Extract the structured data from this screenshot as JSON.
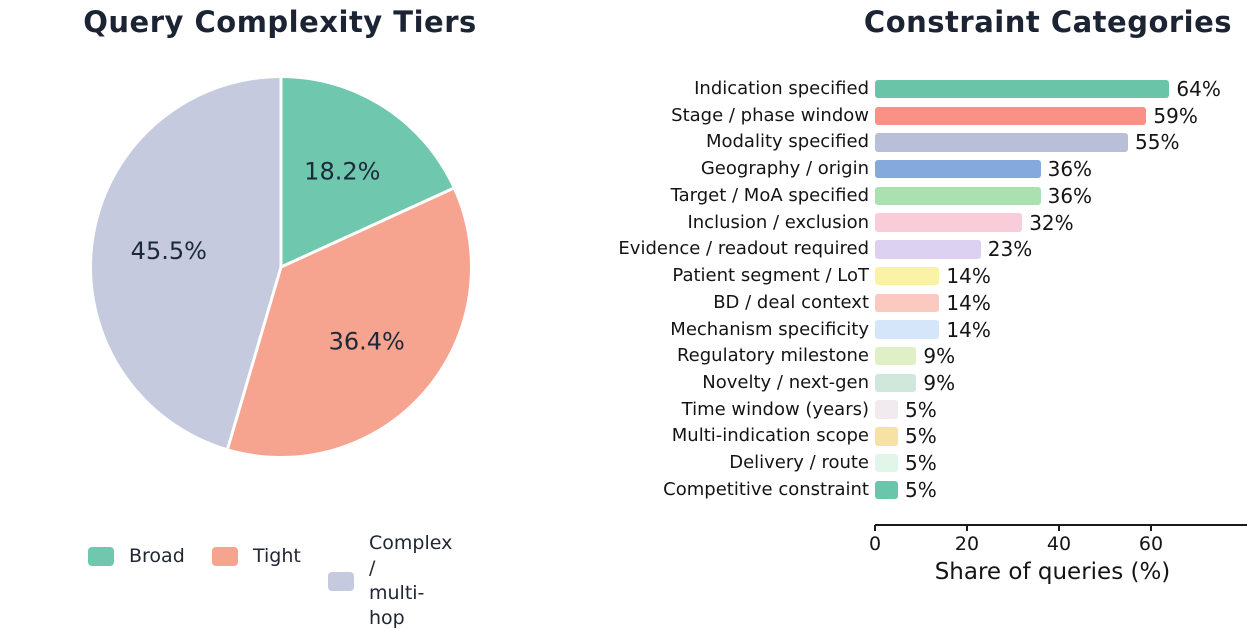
{
  "theme": {
    "background": "#ffffff",
    "title_color": "#1c2433",
    "axis_text_color": "#141414",
    "pie_label_color": "#1c2a38"
  },
  "chart_data": [
    {
      "type": "pie",
      "title": "Query Complexity Tiers",
      "values_pct": [
        18.2,
        36.4,
        45.5
      ],
      "slice_labels": [
        "18.2%",
        "36.4%",
        "45.5%"
      ],
      "colors": [
        "#6fc7ad",
        "#f6a490",
        "#c5cadf"
      ],
      "start_angle": "top",
      "direction": "clockwise",
      "legend_position": "bottom-left",
      "legend": [
        {
          "label": "Broad",
          "color": "#6fc7ad"
        },
        {
          "label": "Tight",
          "color": "#f6a490"
        },
        {
          "label": "Complex /\nmulti-hop",
          "color": "#c5cadf"
        }
      ]
    },
    {
      "type": "bar",
      "orientation": "horizontal",
      "title": "Constraint Categories",
      "xlabel": "Share of queries (%)",
      "xticks": [
        0,
        20,
        40,
        60
      ],
      "xlim": [
        0,
        81
      ],
      "grid": false,
      "categories": [
        "Indication specified",
        "Stage / phase window",
        "Modality specified",
        "Geography / origin",
        "Target / MoA specified",
        "Inclusion / exclusion",
        "Evidence / readout required",
        "Patient segment / LoT",
        "BD / deal context",
        "Mechanism specificity",
        "Regulatory milestone",
        "Novelty / next-gen",
        "Time window (years)",
        "Multi-indication scope",
        "Delivery / route",
        "Competitive constraint"
      ],
      "values": [
        64,
        59,
        55,
        36,
        36,
        32,
        23,
        14,
        14,
        14,
        9,
        9,
        5,
        5,
        5,
        5
      ],
      "value_labels": [
        "64%",
        "59%",
        "55%",
        "36%",
        "36%",
        "32%",
        "23%",
        "14%",
        "14%",
        "14%",
        "9%",
        "9%",
        "5%",
        "5%",
        "5%",
        "5%"
      ],
      "colors": [
        "#6ac5a8",
        "#fa9186",
        "#b9bfd9",
        "#85a9dc",
        "#abe0b1",
        "#f8ccd9",
        "#ddd1f2",
        "#faf2a4",
        "#fbc9c0",
        "#d5e5fa",
        "#dff0c7",
        "#d0e8dc",
        "#f1eaee",
        "#f6e2a2",
        "#e2f5e9",
        "#69c6ab"
      ]
    }
  ]
}
